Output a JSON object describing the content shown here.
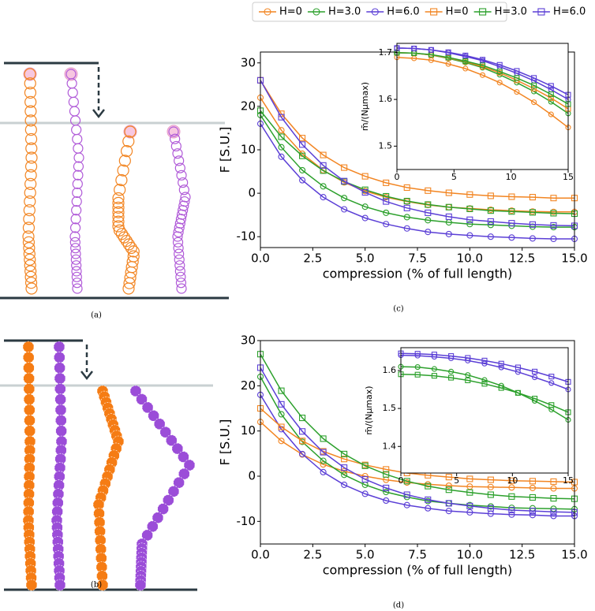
{
  "panel_labels": [
    "(a)",
    "(b)",
    "(c)",
    "(d)"
  ],
  "chart_data": [
    {
      "type": "line",
      "xlabel": "compression (% of full length)",
      "ylabel": "F [S.U.]",
      "x": [
        0,
        1,
        2,
        3,
        4,
        5,
        6,
        7,
        8,
        9,
        10,
        11,
        12,
        13,
        14,
        15
      ],
      "xlim": [
        0,
        15
      ],
      "xticks": [
        {
          "value": 0,
          "label": "0.0"
        },
        2.5,
        {
          "value": 5,
          "label": "5.0"
        },
        7.5,
        {
          "value": 10,
          "label": "10.0"
        },
        12.5,
        {
          "value": 15,
          "label": "15.0"
        }
      ],
      "ylim": [
        -12.5,
        32.5
      ],
      "yticks": [
        -10,
        0,
        10,
        20,
        30
      ],
      "series": [
        {
          "name": "H=0",
          "color": "#f28522",
          "marker": "circle",
          "values": [
            22,
            14.5,
            9.1,
            5.3,
            2.5,
            0.5,
            -0.9,
            -1.9,
            -2.7,
            -3.2,
            -3.5,
            -3.8,
            -4.0,
            -4.2,
            -4.3,
            -4.3
          ]
        },
        {
          "name": "H=3.0",
          "color": "#2ca02c",
          "marker": "circle",
          "values": [
            18,
            10.6,
            5.3,
            1.6,
            -1.1,
            -3.1,
            -4.5,
            -5.5,
            -6.2,
            -6.7,
            -7.1,
            -7.3,
            -7.5,
            -7.7,
            -7.8,
            -7.8
          ]
        },
        {
          "name": "H=6.0",
          "color": "#5b3fd6",
          "marker": "circle",
          "values": [
            16,
            8.4,
            3.0,
            -0.9,
            -3.7,
            -5.7,
            -7.1,
            -8.1,
            -8.9,
            -9.4,
            -9.7,
            -10.0,
            -10.2,
            -10.4,
            -10.5,
            -10.5
          ]
        },
        {
          "name": "H=0",
          "color": "#f28522",
          "marker": "square",
          "values": [
            26,
            18.3,
            12.7,
            8.8,
            5.9,
            3.9,
            2.4,
            1.3,
            0.6,
            0.1,
            -0.3,
            -0.6,
            -0.8,
            -0.9,
            -1.1,
            -1.1
          ]
        },
        {
          "name": "H=3.0",
          "color": "#2ca02c",
          "marker": "square",
          "values": [
            19,
            13.0,
            8.6,
            5.2,
            2.7,
            0.8,
            -0.7,
            -1.8,
            -2.6,
            -3.2,
            -3.6,
            -4.0,
            -4.2,
            -4.4,
            -4.6,
            -4.7
          ]
        },
        {
          "name": "H=6.0",
          "color": "#5b3fd6",
          "marker": "square",
          "values": [
            26,
            17.5,
            11.2,
            6.4,
            2.8,
            0.2,
            -1.9,
            -3.4,
            -4.5,
            -5.4,
            -6.1,
            -6.5,
            -6.9,
            -7.2,
            -7.4,
            -7.5
          ]
        }
      ]
    },
    {
      "type": "line",
      "ylabel": "m̄/(Nμmax)",
      "x": [
        0,
        1.5,
        3,
        4.5,
        6,
        7.5,
        9,
        10.5,
        12,
        13.5,
        15
      ],
      "xlim": [
        0,
        15
      ],
      "xticks": [
        0,
        5,
        10,
        15
      ],
      "ylim": [
        1.45,
        1.72
      ],
      "yticks": [
        1.5,
        1.6,
        1.7
      ],
      "series": [
        {
          "color": "#f28522",
          "marker": "circle",
          "values": [
            1.69,
            1.688,
            1.684,
            1.676,
            1.666,
            1.652,
            1.636,
            1.616,
            1.594,
            1.568,
            1.54
          ]
        },
        {
          "color": "#2ca02c",
          "marker": "circle",
          "values": [
            1.7,
            1.699,
            1.695,
            1.688,
            1.679,
            1.668,
            1.653,
            1.636,
            1.617,
            1.595,
            1.57
          ]
        },
        {
          "color": "#5b3fd6",
          "marker": "circle",
          "values": [
            1.71,
            1.709,
            1.706,
            1.7,
            1.692,
            1.683,
            1.67,
            1.656,
            1.64,
            1.621,
            1.6
          ]
        },
        {
          "color": "#f28522",
          "marker": "square",
          "values": [
            1.7,
            1.699,
            1.695,
            1.689,
            1.681,
            1.67,
            1.657,
            1.641,
            1.623,
            1.603,
            1.58
          ]
        },
        {
          "color": "#2ca02c",
          "marker": "square",
          "values": [
            1.7,
            1.699,
            1.696,
            1.69,
            1.682,
            1.673,
            1.66,
            1.646,
            1.63,
            1.611,
            1.59
          ]
        },
        {
          "color": "#5b3fd6",
          "marker": "square",
          "values": [
            1.71,
            1.709,
            1.706,
            1.701,
            1.694,
            1.685,
            1.674,
            1.661,
            1.646,
            1.629,
            1.61
          ]
        }
      ]
    },
    {
      "type": "line",
      "xlabel": "compression (% of full length)",
      "ylabel": "F [S.U.]",
      "x": [
        0,
        1,
        2,
        3,
        4,
        5,
        6,
        7,
        8,
        9,
        10,
        11,
        12,
        13,
        14,
        15
      ],
      "xlim": [
        0,
        15
      ],
      "xticks": [
        {
          "value": 0,
          "label": "0.0"
        },
        2.5,
        {
          "value": 5,
          "label": "5.0"
        },
        7.5,
        {
          "value": 10,
          "label": "10.0"
        },
        12.5,
        {
          "value": 15,
          "label": "15.0"
        }
      ],
      "ylim": [
        -15,
        30
      ],
      "yticks": [
        -10,
        0,
        10,
        20,
        30
      ],
      "series": [
        {
          "color": "#f28522",
          "marker": "circle",
          "values": [
            12,
            7.8,
            4.8,
            2.6,
            1.1,
            0,
            -0.8,
            -1.4,
            -1.8,
            -2.1,
            -2.3,
            -2.4,
            -2.5,
            -2.6,
            -2.7,
            -2.7
          ]
        },
        {
          "color": "#2ca02c",
          "marker": "circle",
          "values": [
            22,
            13.7,
            7.6,
            3.4,
            0.3,
            -1.9,
            -3.5,
            -4.6,
            -5.5,
            -6.0,
            -6.4,
            -6.7,
            -7.0,
            -7.1,
            -7.2,
            -7.3
          ]
        },
        {
          "color": "#5b3fd6",
          "marker": "circle",
          "values": [
            18,
            10.4,
            4.9,
            0.9,
            -1.9,
            -3.9,
            -5.4,
            -6.4,
            -7.1,
            -7.7,
            -8.0,
            -8.3,
            -8.5,
            -8.6,
            -8.8,
            -8.8
          ]
        },
        {
          "color": "#f28522",
          "marker": "square",
          "values": [
            15,
            10.9,
            7.8,
            5.5,
            3.8,
            2.5,
            1.5,
            0.7,
            0.2,
            -0.2,
            -0.6,
            -0.8,
            -1.0,
            -1.1,
            -1.2,
            -1.3
          ]
        },
        {
          "color": "#2ca02c",
          "marker": "square",
          "values": [
            27,
            18.9,
            12.9,
            8.3,
            4.9,
            2.3,
            0.4,
            -1.1,
            -2.2,
            -3.0,
            -3.6,
            -4.1,
            -4.5,
            -4.7,
            -4.9,
            -5.0
          ]
        },
        {
          "color": "#5b3fd6",
          "marker": "square",
          "values": [
            24,
            15.9,
            9.9,
            5.3,
            1.9,
            -0.7,
            -2.6,
            -4.1,
            -5.2,
            -6.0,
            -6.6,
            -7.1,
            -7.5,
            -7.7,
            -7.9,
            -8.0
          ]
        }
      ]
    },
    {
      "type": "line",
      "ylabel": "m̄/(Nμmax)",
      "x": [
        0,
        1.5,
        3,
        4.5,
        6,
        7.5,
        9,
        10.5,
        12,
        13.5,
        15
      ],
      "xlim": [
        0,
        15
      ],
      "xticks": [
        0,
        5,
        10,
        15
      ],
      "ylim": [
        1.33,
        1.66
      ],
      "yticks": [
        1.4,
        1.5,
        1.6
      ],
      "series": [
        {
          "color": "#2ca02c",
          "marker": "circle",
          "values": [
            1.61,
            1.609,
            1.604,
            1.597,
            1.588,
            1.575,
            1.56,
            1.541,
            1.52,
            1.497,
            1.47
          ]
        },
        {
          "color": "#5b3fd6",
          "marker": "circle",
          "values": [
            1.64,
            1.639,
            1.636,
            1.632,
            1.626,
            1.618,
            1.608,
            1.596,
            1.582,
            1.567,
            1.55
          ]
        },
        {
          "color": "#2ca02c",
          "marker": "square",
          "values": [
            1.59,
            1.589,
            1.586,
            1.581,
            1.574,
            1.565,
            1.554,
            1.541,
            1.526,
            1.509,
            1.49
          ]
        },
        {
          "color": "#5b3fd6",
          "marker": "square",
          "values": [
            1.645,
            1.644,
            1.642,
            1.638,
            1.633,
            1.626,
            1.618,
            1.608,
            1.597,
            1.584,
            1.57
          ]
        }
      ]
    }
  ]
}
